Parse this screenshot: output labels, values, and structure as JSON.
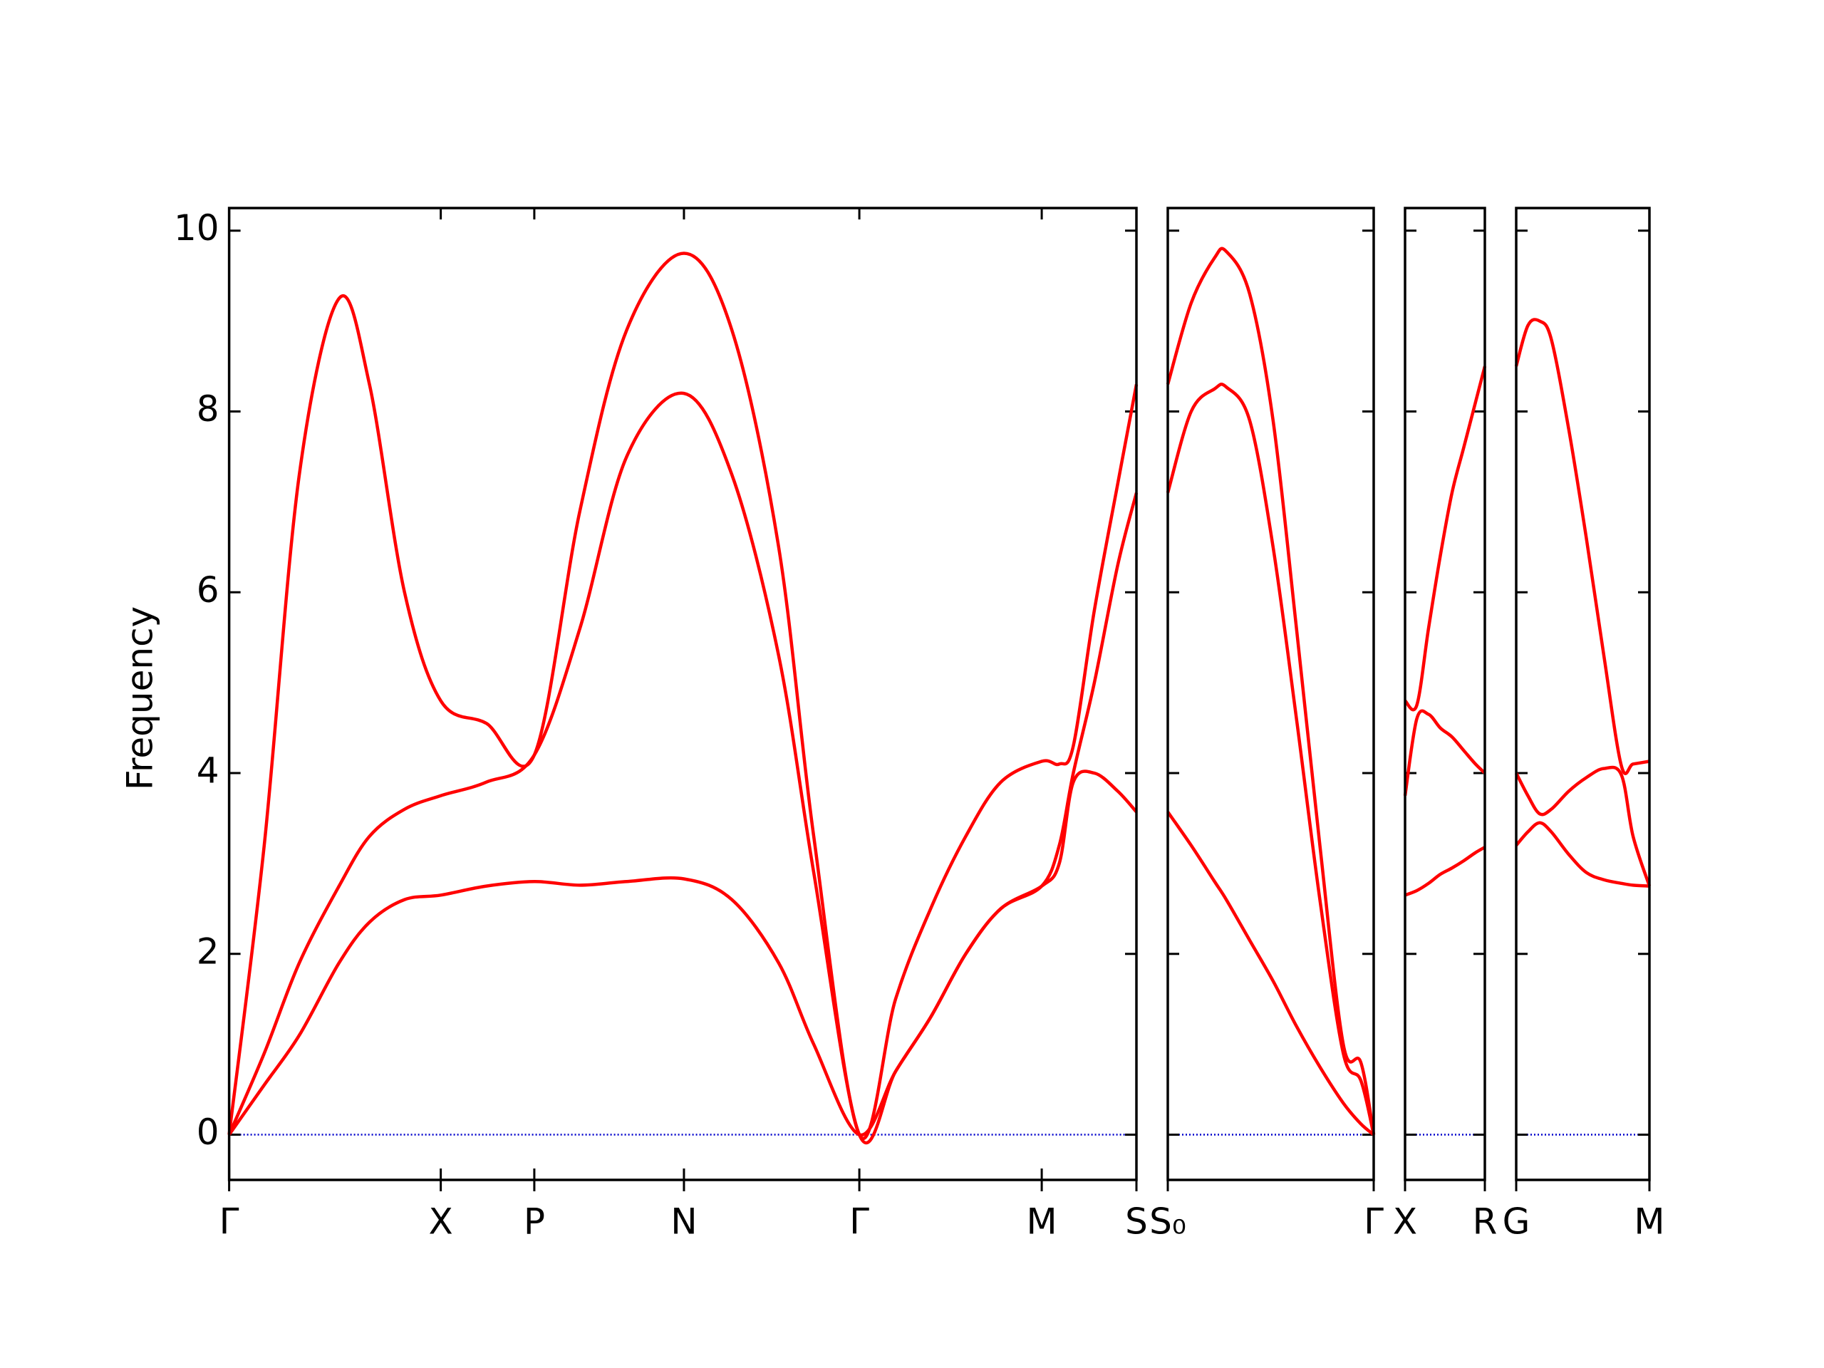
{
  "chart_data": [
    {
      "type": "line",
      "ylabel": "Frequency",
      "x": [
        0,
        0.3,
        0.6,
        0.94,
        1.2,
        1.5,
        1.81,
        2.2,
        2.61,
        3.0,
        3.4,
        3.89,
        4.3,
        4.7,
        5.0,
        5.39,
        5.7,
        6.0,
        6.3,
        6.6,
        6.95,
        7.1,
        7.22,
        7.4,
        7.6,
        7.76
      ],
      "xlim": [
        0,
        7.76
      ],
      "xticks": [
        {
          "value": 0,
          "label": "Γ"
        },
        {
          "value": 1.81,
          "label": "X"
        },
        {
          "value": 2.61,
          "label": "P"
        },
        {
          "value": 3.89,
          "label": "N"
        },
        {
          "value": 5.39,
          "label": "Γ"
        },
        {
          "value": 6.95,
          "label": "M"
        },
        {
          "value": 7.76,
          "label": "S"
        }
      ],
      "ylim": [
        -0.5,
        10.25
      ],
      "yticks": [
        0,
        2,
        4,
        6,
        8,
        10
      ],
      "hline": 0,
      "hline_color": "#0000cc",
      "series": [
        {
          "color": "#ff0000",
          "values": [
            0,
            0.55,
            1.1,
            1.9,
            2.35,
            2.6,
            2.65,
            2.75,
            2.8,
            2.76,
            2.8,
            2.83,
            2.6,
            1.9,
            1.0,
            0,
            0.7,
            1.3,
            2.0,
            2.5,
            2.75,
            3.0,
            3.9,
            4.0,
            3.8,
            3.57
          ]
        },
        {
          "color": "#ff0000",
          "values": [
            0,
            0.9,
            1.9,
            2.75,
            3.3,
            3.6,
            3.75,
            3.9,
            4.2,
            5.6,
            7.5,
            8.2,
            7.3,
            5.3,
            2.9,
            0,
            0.7,
            1.3,
            2.0,
            2.5,
            2.75,
            3.2,
            4.0,
            5.0,
            6.3,
            7.1
          ]
        },
        {
          "color": "#ff0000",
          "values": [
            0,
            3.2,
            7.3,
            9.25,
            8.3,
            6.0,
            4.8,
            4.55,
            4.2,
            6.9,
            8.9,
            9.75,
            8.9,
            6.5,
            3.3,
            0,
            1.5,
            2.5,
            3.3,
            3.9,
            4.13,
            4.1,
            4.3,
            5.8,
            7.2,
            8.3
          ]
        }
      ]
    },
    {
      "type": "line",
      "x": [
        0,
        0.2,
        0.4,
        0.5,
        0.7,
        0.9,
        1.1,
        1.3,
        1.5,
        1.65,
        1.76
      ],
      "xlim": [
        0,
        1.76
      ],
      "xticks": [
        {
          "value": 0,
          "label": "S₀"
        },
        {
          "value": 1.76,
          "label": "Γ"
        }
      ],
      "ylim": [
        -0.5,
        10.25
      ],
      "yticks": [
        0,
        2,
        4,
        6,
        8,
        10
      ],
      "hline": 0,
      "hline_color": "#0000cc",
      "series": [
        {
          "color": "#ff0000",
          "values": [
            3.57,
            3.2,
            2.8,
            2.6,
            2.15,
            1.7,
            1.2,
            0.75,
            0.35,
            0.12,
            0
          ]
        },
        {
          "color": "#ff0000",
          "values": [
            7.1,
            8.0,
            8.25,
            8.27,
            7.9,
            6.5,
            4.6,
            2.6,
            0.9,
            0.6,
            0
          ]
        },
        {
          "color": "#ff0000",
          "values": [
            8.3,
            9.2,
            9.7,
            9.77,
            9.3,
            7.9,
            5.6,
            3.2,
            1.0,
            0.8,
            0
          ]
        }
      ]
    },
    {
      "type": "line",
      "x": [
        0,
        0.1,
        0.2,
        0.3,
        0.4,
        0.5,
        0.6,
        0.68
      ],
      "xlim": [
        0,
        0.68
      ],
      "xticks": [
        {
          "value": 0,
          "label": "X"
        },
        {
          "value": 0.68,
          "label": "R"
        }
      ],
      "ylim": [
        -0.5,
        10.25
      ],
      "yticks": [
        0,
        2,
        4,
        6,
        8,
        10
      ],
      "hline": 0,
      "hline_color": "#0000cc",
      "series": [
        {
          "color": "#ff0000",
          "values": [
            2.65,
            2.7,
            2.78,
            2.88,
            2.95,
            3.03,
            3.12,
            3.18
          ]
        },
        {
          "color": "#ff0000",
          "values": [
            3.75,
            4.6,
            4.65,
            4.5,
            4.4,
            4.25,
            4.1,
            4.0
          ]
        },
        {
          "color": "#ff0000",
          "values": [
            4.8,
            4.75,
            5.6,
            6.4,
            7.1,
            7.6,
            8.1,
            8.5
          ]
        }
      ]
    },
    {
      "type": "line",
      "x": [
        0,
        0.1,
        0.2,
        0.3,
        0.45,
        0.6,
        0.75,
        0.9,
        1.0,
        1.14
      ],
      "xlim": [
        0,
        1.14
      ],
      "xticks": [
        {
          "value": 0,
          "label": "G"
        },
        {
          "value": 1.14,
          "label": "M"
        }
      ],
      "ylim": [
        -0.5,
        10.25
      ],
      "yticks": [
        0,
        2,
        4,
        6,
        8,
        10
      ],
      "hline": 0,
      "hline_color": "#0000cc",
      "series": [
        {
          "color": "#ff0000",
          "values": [
            3.2,
            3.35,
            3.45,
            3.35,
            3.1,
            2.9,
            2.82,
            2.78,
            2.76,
            2.75
          ]
        },
        {
          "color": "#ff0000",
          "values": [
            4.0,
            3.75,
            3.55,
            3.6,
            3.8,
            3.95,
            4.05,
            3.98,
            3.3,
            2.75
          ]
        },
        {
          "color": "#ff0000",
          "values": [
            8.5,
            8.95,
            9.0,
            8.8,
            7.8,
            6.6,
            5.3,
            4.08,
            4.1,
            4.13
          ]
        }
      ]
    }
  ]
}
